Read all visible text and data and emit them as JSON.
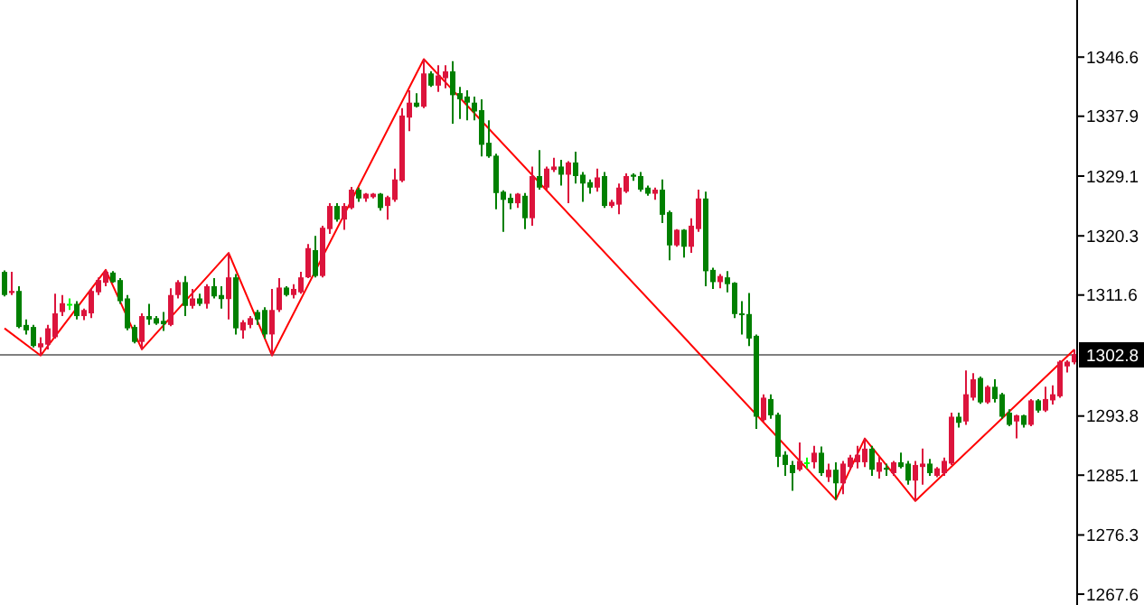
{
  "chart_data": {
    "type": "candlestick",
    "tick_labels": "y",
    "grid": false,
    "ylim": [
      1266.0,
      1355.0
    ],
    "yticks": [
      1346.6,
      1337.9,
      1329.1,
      1320.3,
      1311.6,
      1293.8,
      1285.1,
      1276.3,
      1267.6
    ],
    "categories": [
      null,
      null,
      null,
      null,
      null,
      null,
      null,
      null,
      null,
      null,
      null,
      null,
      null,
      null,
      null,
      null,
      null,
      null,
      null,
      null,
      null,
      null,
      null,
      null,
      null,
      null,
      null,
      null,
      null,
      null,
      null,
      null,
      null,
      null,
      null,
      null,
      null,
      null,
      null,
      null,
      null,
      null,
      null,
      null,
      null,
      null,
      null,
      null,
      null,
      null,
      null,
      null,
      null,
      null,
      null,
      null,
      null,
      null,
      null,
      null,
      null,
      null,
      null,
      null,
      null,
      null,
      null,
      null,
      null,
      null,
      null,
      null,
      null,
      null,
      null,
      null,
      null,
      null,
      null,
      null,
      null,
      null,
      null,
      null,
      null,
      null,
      null,
      null,
      null,
      null,
      null,
      null,
      null,
      null,
      null,
      null,
      null,
      null,
      null,
      null,
      null,
      null,
      null,
      null,
      null,
      null,
      null,
      null,
      null,
      null,
      null,
      null,
      null,
      null,
      null,
      null,
      null,
      null,
      null,
      null,
      null,
      null,
      null,
      null,
      null,
      null,
      null,
      null,
      null,
      null,
      null,
      null,
      null,
      null,
      null,
      null,
      null,
      null,
      null,
      null,
      null,
      null,
      null,
      null,
      null,
      null,
      null,
      null,
      null
    ],
    "ohlc": [
      [
        1315.0,
        1315.2,
        1311.4,
        1311.6
      ],
      [
        1311.9,
        1315.0,
        1311.6,
        1312.2
      ],
      [
        1312.2,
        1312.9,
        1306.7,
        1306.9
      ],
      [
        1307.2,
        1308.0,
        1305.8,
        1306.4
      ],
      [
        1306.9,
        1307.2,
        1303.9,
        1304.1
      ],
      [
        1303.9,
        1305.4,
        1302.7,
        1304.5
      ],
      [
        1304.3,
        1307.2,
        1303.6,
        1306.7
      ],
      [
        1305.4,
        1311.8,
        1305.2,
        1308.9
      ],
      [
        1309.1,
        1311.6,
        1308.5,
        1310.4
      ],
      [
        1310.3,
        1311.1,
        1309.4,
        1310.3
      ],
      [
        1310.3,
        1310.7,
        1308.0,
        1308.5
      ],
      [
        1308.5,
        1309.6,
        1307.9,
        1309.4
      ],
      [
        1308.9,
        1312.6,
        1308.2,
        1312.2
      ],
      [
        1312.0,
        1314.2,
        1311.6,
        1313.8
      ],
      [
        1313.4,
        1315.3,
        1312.9,
        1315.0
      ],
      [
        1314.9,
        1315.1,
        1313.4,
        1313.5
      ],
      [
        1313.8,
        1314.1,
        1310.3,
        1310.7
      ],
      [
        1311.1,
        1311.6,
        1306.4,
        1306.7
      ],
      [
        1306.9,
        1307.2,
        1304.5,
        1304.7
      ],
      [
        1304.7,
        1308.9,
        1303.6,
        1308.5
      ],
      [
        1308.5,
        1310.3,
        1307.2,
        1308.0
      ],
      [
        1308.2,
        1308.5,
        1307.2,
        1307.4
      ],
      [
        1307.8,
        1309.1,
        1306.3,
        1307.3
      ],
      [
        1307.2,
        1312.6,
        1307.0,
        1311.6
      ],
      [
        1311.6,
        1313.8,
        1311.1,
        1313.5
      ],
      [
        1313.5,
        1314.4,
        1308.5,
        1310.0
      ],
      [
        1310.0,
        1312.5,
        1309.6,
        1311.1
      ],
      [
        1311.1,
        1311.8,
        1310.0,
        1310.3
      ],
      [
        1310.3,
        1313.2,
        1309.6,
        1312.9
      ],
      [
        1312.9,
        1314.1,
        1311.1,
        1311.4
      ],
      [
        1311.6,
        1312.9,
        1309.6,
        1311.0
      ],
      [
        1311.0,
        1317.8,
        1308.0,
        1314.2
      ],
      [
        1314.2,
        1314.7,
        1305.8,
        1306.7
      ],
      [
        1306.4,
        1307.9,
        1305.2,
        1307.6
      ],
      [
        1307.2,
        1308.5,
        1306.7,
        1308.2
      ],
      [
        1309.1,
        1309.4,
        1307.2,
        1308.0
      ],
      [
        1309.4,
        1309.8,
        1305.2,
        1305.8
      ],
      [
        1305.8,
        1312.5,
        1302.7,
        1309.4
      ],
      [
        1309.4,
        1314.1,
        1309.1,
        1312.7
      ],
      [
        1312.7,
        1312.9,
        1311.4,
        1311.6
      ],
      [
        1311.6,
        1313.2,
        1311.1,
        1312.5
      ],
      [
        1312.0,
        1315.0,
        1311.8,
        1314.2
      ],
      [
        1314.2,
        1319.1,
        1314.1,
        1318.5
      ],
      [
        1318.2,
        1320.3,
        1314.2,
        1314.4
      ],
      [
        1314.4,
        1321.8,
        1314.2,
        1321.5
      ],
      [
        1321.3,
        1325.1,
        1320.6,
        1324.7
      ],
      [
        1324.7,
        1325.1,
        1322.4,
        1322.7
      ],
      [
        1322.7,
        1325.1,
        1321.2,
        1324.7
      ],
      [
        1324.4,
        1327.5,
        1324.2,
        1327.1
      ],
      [
        1327.1,
        1327.4,
        1325.3,
        1325.8
      ],
      [
        1325.8,
        1326.6,
        1325.3,
        1326.5
      ],
      [
        1326.0,
        1326.6,
        1325.8,
        1326.5
      ],
      [
        1326.5,
        1326.6,
        1324.0,
        1324.4
      ],
      [
        1324.7,
        1326.2,
        1322.7,
        1326.0
      ],
      [
        1325.6,
        1330.2,
        1325.3,
        1328.6
      ],
      [
        1328.4,
        1339.1,
        1328.2,
        1338.0
      ],
      [
        1337.7,
        1341.7,
        1335.7,
        1339.9
      ],
      [
        1339.9,
        1341.3,
        1339.2,
        1339.3
      ],
      [
        1339.3,
        1346.3,
        1339.1,
        1344.2
      ],
      [
        1344.2,
        1344.5,
        1342.2,
        1342.4
      ],
      [
        1342.4,
        1345.4,
        1341.5,
        1343.9
      ],
      [
        1343.5,
        1345.4,
        1342.0,
        1344.5
      ],
      [
        1344.5,
        1346.0,
        1336.8,
        1341.0
      ],
      [
        1341.3,
        1342.2,
        1337.5,
        1340.4
      ],
      [
        1340.8,
        1341.7,
        1337.3,
        1339.9
      ],
      [
        1339.9,
        1340.8,
        1337.3,
        1338.6
      ],
      [
        1338.8,
        1340.4,
        1332.0,
        1333.7
      ],
      [
        1334.0,
        1337.3,
        1331.8,
        1332.0
      ],
      [
        1332.1,
        1332.4,
        1324.2,
        1326.6
      ],
      [
        1326.8,
        1327.0,
        1320.9,
        1325.6
      ],
      [
        1325.9,
        1326.5,
        1324.2,
        1325.1
      ],
      [
        1325.1,
        1326.6,
        1324.4,
        1326.5
      ],
      [
        1326.2,
        1326.6,
        1321.3,
        1322.9
      ],
      [
        1322.9,
        1330.5,
        1321.8,
        1329.1
      ],
      [
        1329.1,
        1332.9,
        1327.1,
        1327.4
      ],
      [
        1327.4,
        1330.5,
        1327.1,
        1330.2
      ],
      [
        1330.0,
        1331.8,
        1329.7,
        1330.5
      ],
      [
        1330.5,
        1331.5,
        1327.7,
        1329.3
      ],
      [
        1329.3,
        1331.3,
        1325.1,
        1331.1
      ],
      [
        1331.1,
        1332.7,
        1328.0,
        1329.1
      ],
      [
        1329.3,
        1329.7,
        1325.3,
        1328.0
      ],
      [
        1328.2,
        1328.6,
        1326.5,
        1327.4
      ],
      [
        1327.4,
        1330.2,
        1326.8,
        1328.9
      ],
      [
        1329.1,
        1329.7,
        1324.4,
        1324.7
      ],
      [
        1324.7,
        1325.6,
        1324.4,
        1325.3
      ],
      [
        1324.9,
        1328.0,
        1323.5,
        1327.4
      ],
      [
        1326.8,
        1329.5,
        1326.6,
        1329.1
      ],
      [
        1329.3,
        1329.5,
        1328.4,
        1329.0
      ],
      [
        1329.1,
        1329.7,
        1326.8,
        1327.1
      ],
      [
        1327.4,
        1327.7,
        1326.2,
        1326.5
      ],
      [
        1326.5,
        1327.4,
        1325.6,
        1327.1
      ],
      [
        1327.1,
        1328.6,
        1322.2,
        1323.4
      ],
      [
        1323.8,
        1324.0,
        1316.7,
        1318.9
      ],
      [
        1318.9,
        1321.3,
        1318.7,
        1321.2
      ],
      [
        1321.2,
        1321.3,
        1317.1,
        1318.7
      ],
      [
        1318.7,
        1322.9,
        1317.8,
        1321.8
      ],
      [
        1321.3,
        1327.1,
        1320.9,
        1325.8
      ],
      [
        1325.8,
        1326.8,
        1312.9,
        1315.1
      ],
      [
        1315.3,
        1315.6,
        1312.5,
        1313.5
      ],
      [
        1313.5,
        1314.7,
        1312.6,
        1314.4
      ],
      [
        1314.2,
        1315.1,
        1312.0,
        1313.2
      ],
      [
        1313.4,
        1313.5,
        1308.2,
        1308.8
      ],
      [
        1308.9,
        1310.7,
        1305.8,
        1308.7
      ],
      [
        1308.8,
        1311.9,
        1304.1,
        1305.2
      ],
      [
        1305.6,
        1305.8,
        1291.9,
        1293.7
      ],
      [
        1293.2,
        1297.0,
        1293.0,
        1296.5
      ],
      [
        1296.3,
        1297.0,
        1293.4,
        1293.9
      ],
      [
        1294.0,
        1294.3,
        1286.3,
        1287.8
      ],
      [
        1288.1,
        1288.6,
        1285.0,
        1286.6
      ],
      [
        1286.6,
        1287.2,
        1282.8,
        1285.4
      ],
      [
        1285.9,
        1289.9,
        1285.7,
        1287.2
      ],
      [
        1287.0,
        1287.7,
        1286.1,
        1287.0
      ],
      [
        1287.0,
        1289.4,
        1286.1,
        1288.4
      ],
      [
        1288.4,
        1289.3,
        1285.0,
        1285.4
      ],
      [
        1284.8,
        1286.8,
        1284.1,
        1285.9
      ],
      [
        1285.9,
        1287.0,
        1281.5,
        1283.9
      ],
      [
        1283.9,
        1287.2,
        1282.3,
        1286.8
      ],
      [
        1286.3,
        1288.1,
        1285.9,
        1287.7
      ],
      [
        1287.0,
        1289.4,
        1286.1,
        1288.1
      ],
      [
        1287.0,
        1290.5,
        1286.3,
        1289.0
      ],
      [
        1289.0,
        1289.4,
        1285.0,
        1285.9
      ],
      [
        1285.6,
        1287.8,
        1284.6,
        1287.0
      ],
      [
        1286.2,
        1286.8,
        1285.0,
        1285.9
      ],
      [
        1285.4,
        1287.2,
        1285.0,
        1287.0
      ],
      [
        1287.0,
        1288.4,
        1286.1,
        1286.3
      ],
      [
        1286.8,
        1287.2,
        1283.7,
        1284.3
      ],
      [
        1284.3,
        1287.2,
        1281.3,
        1286.6
      ],
      [
        1286.3,
        1289.0,
        1283.7,
        1286.8
      ],
      [
        1286.8,
        1287.5,
        1285.0,
        1285.4
      ],
      [
        1285.0,
        1286.3,
        1284.8,
        1286.1
      ],
      [
        1285.4,
        1287.7,
        1285.0,
        1287.2
      ],
      [
        1286.8,
        1294.3,
        1286.6,
        1293.7
      ],
      [
        1293.7,
        1294.3,
        1292.1,
        1292.8
      ],
      [
        1293.0,
        1300.5,
        1292.5,
        1297.0
      ],
      [
        1296.5,
        1300.1,
        1296.1,
        1299.2
      ],
      [
        1299.4,
        1299.6,
        1295.6,
        1295.8
      ],
      [
        1295.8,
        1298.3,
        1295.6,
        1298.1
      ],
      [
        1298.1,
        1299.2,
        1295.8,
        1296.3
      ],
      [
        1297.0,
        1297.2,
        1293.4,
        1293.7
      ],
      [
        1294.3,
        1294.8,
        1292.3,
        1292.5
      ],
      [
        1293.0,
        1294.0,
        1290.5,
        1293.9
      ],
      [
        1293.9,
        1294.0,
        1292.1,
        1292.5
      ],
      [
        1292.5,
        1296.3,
        1292.3,
        1296.1
      ],
      [
        1296.1,
        1296.3,
        1294.3,
        1294.6
      ],
      [
        1294.6,
        1298.1,
        1294.4,
        1296.3
      ],
      [
        1296.1,
        1298.3,
        1295.5,
        1297.0
      ],
      [
        1296.7,
        1302.0,
        1296.5,
        1301.8
      ],
      [
        1301.1,
        1302.0,
        1300.2,
        1301.8
      ],
      [
        1301.7,
        1303.6,
        1301.4,
        1302.9
      ]
    ],
    "colors": [
      "#008000",
      "#dc143c",
      "#008000",
      "#008000",
      "#008000",
      "#dc143c",
      "#dc143c",
      "#dc143c",
      "#dc143c",
      "#00ff00",
      "#008000",
      "#dc143c",
      "#dc143c",
      "#dc143c",
      "#dc143c",
      "#008000",
      "#008000",
      "#008000",
      "#008000",
      "#dc143c",
      "#008000",
      "#008000",
      "#008000",
      "#dc143c",
      "#dc143c",
      "#008000",
      "#dc143c",
      "#008000",
      "#dc143c",
      "#008000",
      "#008000",
      "#dc143c",
      "#008000",
      "#dc143c",
      "#dc143c",
      "#008000",
      "#008000",
      "#dc143c",
      "#dc143c",
      "#008000",
      "#dc143c",
      "#dc143c",
      "#dc143c",
      "#008000",
      "#dc143c",
      "#dc143c",
      "#008000",
      "#dc143c",
      "#dc143c",
      "#008000",
      "#dc143c",
      "#dc143c",
      "#008000",
      "#dc143c",
      "#dc143c",
      "#dc143c",
      "#dc143c",
      "#008000",
      "#dc143c",
      "#008000",
      "#dc143c",
      "#dc143c",
      "#008000",
      "#008000",
      "#008000",
      "#008000",
      "#008000",
      "#008000",
      "#008000",
      "#008000",
      "#008000",
      "#dc143c",
      "#008000",
      "#dc143c",
      "#008000",
      "#dc143c",
      "#dc143c",
      "#008000",
      "#dc143c",
      "#008000",
      "#008000",
      "#008000",
      "#dc143c",
      "#008000",
      "#dc143c",
      "#dc143c",
      "#dc143c",
      "#008000",
      "#008000",
      "#008000",
      "#dc143c",
      "#008000",
      "#008000",
      "#dc143c",
      "#008000",
      "#dc143c",
      "#dc143c",
      "#008000",
      "#008000",
      "#dc143c",
      "#008000",
      "#008000",
      "#008000",
      "#008000",
      "#008000",
      "#dc143c",
      "#008000",
      "#008000",
      "#008000",
      "#008000",
      "#dc143c",
      "#00ff00",
      "#dc143c",
      "#008000",
      "#dc143c",
      "#008000",
      "#dc143c",
      "#dc143c",
      "#dc143c",
      "#dc143c",
      "#008000",
      "#dc143c",
      "#008000",
      "#dc143c",
      "#008000",
      "#008000",
      "#dc143c",
      "#dc143c",
      "#008000",
      "#dc143c",
      "#dc143c",
      "#dc143c",
      "#008000",
      "#dc143c",
      "#dc143c",
      "#008000",
      "#dc143c",
      "#008000",
      "#008000",
      "#008000",
      "#dc143c",
      "#008000",
      "#dc143c",
      "#008000",
      "#dc143c",
      "#dc143c",
      "#dc143c",
      "#dc143c",
      "#dc143c"
    ],
    "series": [
      {
        "type": "line",
        "color": "#ff0000",
        "marker": "none",
        "line_style": "solid",
        "values": [
          1306.7,
          null,
          null,
          null,
          null,
          1302.7,
          null,
          null,
          null,
          null,
          null,
          null,
          null,
          null,
          1315.3,
          null,
          null,
          null,
          null,
          1303.6,
          null,
          null,
          null,
          null,
          null,
          null,
          null,
          null,
          null,
          null,
          null,
          1317.8,
          null,
          null,
          null,
          null,
          null,
          1302.7,
          null,
          null,
          null,
          null,
          null,
          null,
          null,
          null,
          null,
          null,
          null,
          null,
          null,
          null,
          null,
          null,
          null,
          null,
          null,
          null,
          1346.3,
          null,
          null,
          null,
          null,
          null,
          null,
          null,
          null,
          null,
          null,
          null,
          null,
          null,
          null,
          null,
          null,
          null,
          null,
          null,
          null,
          null,
          null,
          null,
          null,
          null,
          null,
          null,
          null,
          null,
          null,
          null,
          null,
          null,
          null,
          null,
          null,
          null,
          null,
          null,
          null,
          null,
          null,
          null,
          null,
          null,
          null,
          null,
          null,
          null,
          null,
          null,
          null,
          null,
          null,
          null,
          null,
          1281.5,
          null,
          null,
          null,
          1290.5,
          null,
          null,
          null,
          null,
          null,
          null,
          1281.3,
          null,
          null,
          null,
          null,
          null,
          null,
          null,
          null,
          null,
          null,
          null,
          null,
          null,
          null,
          null,
          null,
          null,
          null,
          null,
          null,
          null,
          1303.6
        ]
      }
    ],
    "ref_lines": [
      {
        "axis": "y",
        "value": 1302.8,
        "label": "1302.8",
        "color": "#808080"
      }
    ]
  }
}
